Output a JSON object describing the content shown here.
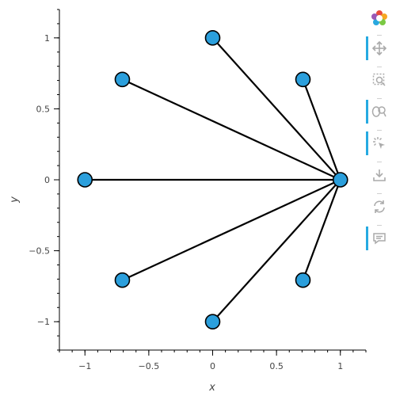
{
  "chart_data": {
    "type": "scatter",
    "description_free": true,
    "xlabel": "x",
    "ylabel": "y",
    "xlim": [
      -1.2,
      1.2
    ],
    "ylim": [
      -1.2,
      1.2
    ],
    "xticks": [
      -1,
      -0.5,
      0,
      0.5,
      1
    ],
    "xtick_labels": [
      "−1",
      "−0.5",
      "0",
      "0.5",
      "1"
    ],
    "yticks": [
      -1,
      -0.5,
      0,
      0.5,
      1
    ],
    "ytick_labels": [
      "−1",
      "−0.5",
      "0",
      "0.5",
      "1"
    ],
    "nodes": [
      {
        "x": 1,
        "y": 0
      },
      {
        "x": 0.7071,
        "y": 0.7071
      },
      {
        "x": 0,
        "y": 1
      },
      {
        "x": -0.7071,
        "y": 0.7071
      },
      {
        "x": -1,
        "y": 0
      },
      {
        "x": -0.7071,
        "y": -0.7071
      },
      {
        "x": 0,
        "y": -1
      },
      {
        "x": 0.7071,
        "y": -0.7071
      }
    ],
    "edges": [
      [
        0,
        1
      ],
      [
        0,
        2
      ],
      [
        0,
        3
      ],
      [
        0,
        4
      ],
      [
        0,
        5
      ],
      [
        0,
        6
      ],
      [
        0,
        7
      ]
    ],
    "node_color": "#2b9fdc",
    "edge_color": "#000000",
    "grid": false
  },
  "toolbar": {
    "logo_icon": "bokeh-logo-icon",
    "tools": [
      {
        "icon": "pan-icon",
        "active": true
      },
      {
        "icon": "box-zoom-icon",
        "active": false
      },
      {
        "icon": "wheel-zoom-icon",
        "active": true
      },
      {
        "icon": "tap-icon",
        "active": true
      },
      {
        "icon": "save-icon",
        "active": false
      },
      {
        "icon": "reset-icon",
        "active": false
      },
      {
        "icon": "hover-icon",
        "active": true
      }
    ],
    "accent_color": "#26aae1"
  }
}
